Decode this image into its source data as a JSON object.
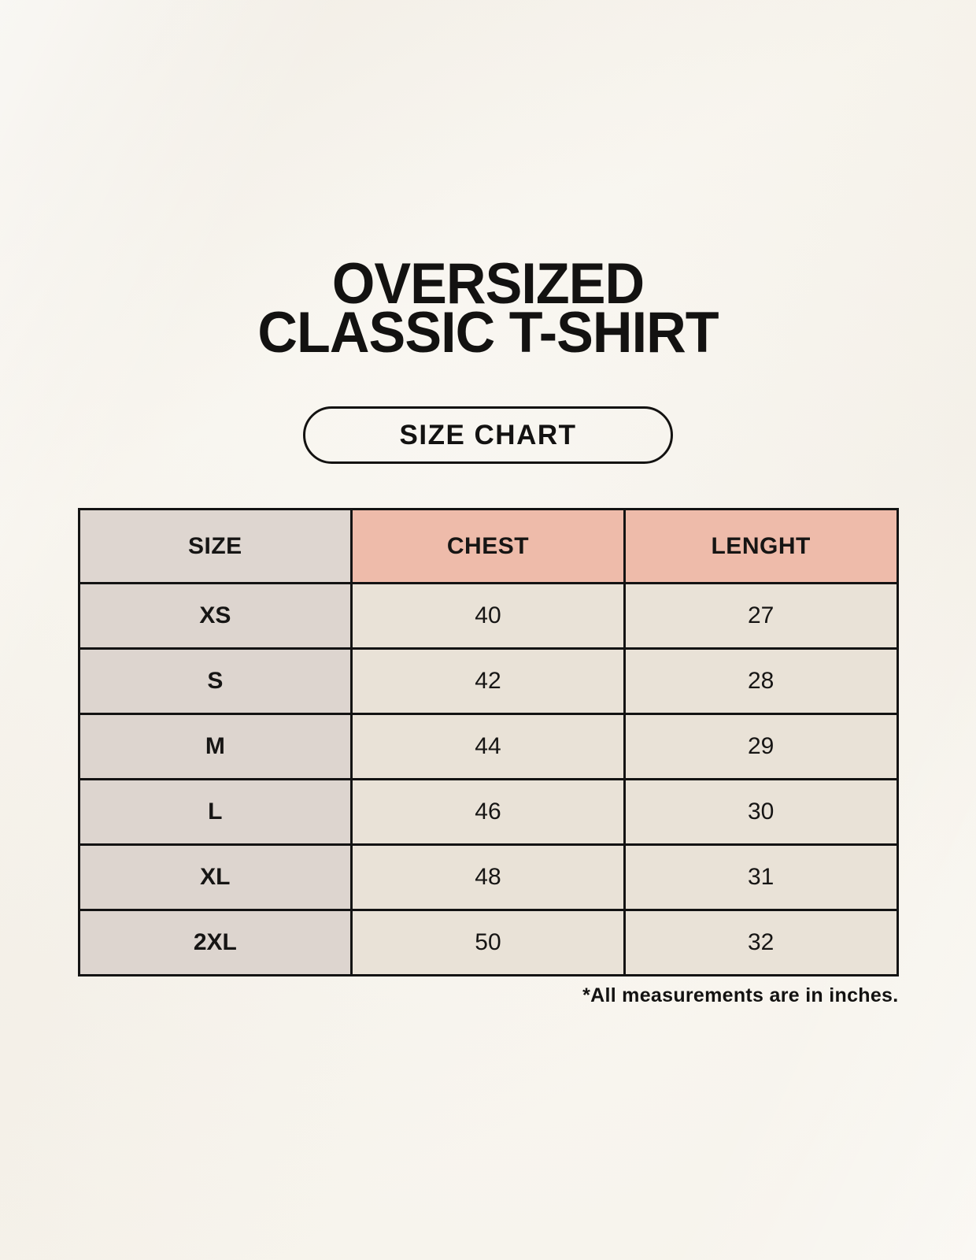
{
  "page": {
    "background_color": "#f8f5ee",
    "text_color": "#131211",
    "border_color": "#131313"
  },
  "title": {
    "line1": "OVERSIZED",
    "line2": "CLASSIC T-SHIRT"
  },
  "size_chart_button": {
    "label": "SIZE CHART"
  },
  "table": {
    "headers": [
      "SIZE",
      "CHEST",
      "LENGHT"
    ],
    "header_colors": {
      "size_column": "#ded6d0",
      "measurement_columns": "#eebbaa"
    },
    "cell_colors": {
      "size_column": "#ddd5cf",
      "measurement_cells": "#e9e2d7"
    },
    "rows": [
      [
        "XS",
        "40",
        "27"
      ],
      [
        "S",
        "42",
        "28"
      ],
      [
        "M",
        "44",
        "29"
      ],
      [
        "L",
        "46",
        "30"
      ],
      [
        "XL",
        "48",
        "31"
      ],
      [
        "2XL",
        "50",
        "32"
      ]
    ]
  },
  "footnote": "*All measurements are in inches."
}
